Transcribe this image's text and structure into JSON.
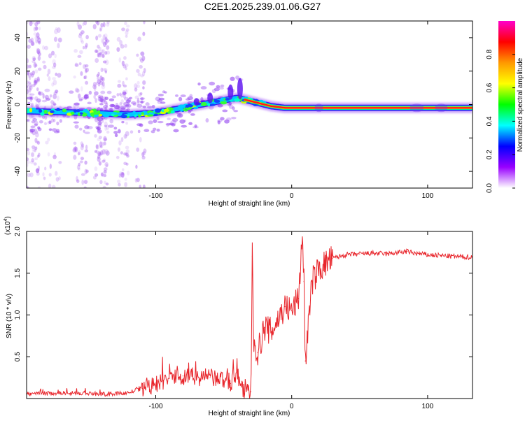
{
  "figure_title": "C2E1.2025.239.01.06.G27",
  "chart_data": [
    {
      "type": "heatmap",
      "title": "C2E1.2025.239.01.06.G27",
      "xlabel": "Height of straight line (km)",
      "ylabel": "Frequency (Hz)",
      "xlim": [
        -195,
        133
      ],
      "ylim": [
        -50,
        50
      ],
      "xticks": [
        {
          "v": -100,
          "t": "-100"
        },
        {
          "v": 0,
          "t": "0"
        },
        {
          "v": 100,
          "t": "100"
        }
      ],
      "yticks": [
        {
          "v": -40,
          "t": "-40"
        },
        {
          "v": -20,
          "t": "-20"
        },
        {
          "v": 0,
          "t": "0"
        },
        {
          "v": 20,
          "t": "20"
        },
        {
          "v": 40,
          "t": "40"
        }
      ],
      "ridge": {
        "x": [
          -195,
          -150,
          -120,
          -100,
          -80,
          -60,
          -40,
          -35,
          -25,
          -15,
          -5,
          0,
          20,
          60,
          85,
          90,
          100,
          108,
          115,
          133
        ],
        "y": [
          -4,
          -5,
          -6,
          -5,
          -2,
          1,
          4,
          3,
          1,
          -1,
          -2,
          -2,
          -2,
          -2,
          -2,
          -2,
          -2,
          -2,
          -2,
          -2
        ]
      },
      "colorbar": {
        "label": "Normalized spectral amplitude",
        "range": [
          0,
          1
        ],
        "ticks": [
          {
            "v": 0.0,
            "t": "0.0"
          },
          {
            "v": 0.2,
            "t": "0.2"
          },
          {
            "v": 0.4,
            "t": "0.4"
          },
          {
            "v": 0.6,
            "t": "0.6"
          },
          {
            "v": 0.8,
            "t": "0.8"
          }
        ],
        "colors": [
          "#ffffff",
          "#9900ff",
          "#0000ff",
          "#00ffff",
          "#00ff00",
          "#ffff00",
          "#ff9900",
          "#ff0000",
          "#ff00cc"
        ]
      }
    },
    {
      "type": "line",
      "title": "",
      "xlabel": "Height of straight line (km)",
      "ylabel": "SNR (10 * v/v)",
      "scale_note": "(x10",
      "scale_exp": "4",
      "scale_close": ")",
      "xlim": [
        -195,
        133
      ],
      "ylim": [
        0,
        2.0
      ],
      "xticks": [
        {
          "v": -100,
          "t": "-100"
        },
        {
          "v": 0,
          "t": "0"
        },
        {
          "v": 100,
          "t": "100"
        }
      ],
      "yticks": [
        {
          "v": 0.5,
          "t": "0.5"
        },
        {
          "v": 1.0,
          "t": "1.0"
        },
        {
          "v": 1.5,
          "t": "1.5"
        },
        {
          "v": 2.0,
          "t": "2.0"
        }
      ],
      "color": "#e8242a",
      "series": [
        {
          "name": "SNR",
          "x": [
            -195,
            -180,
            -165,
            -150,
            -135,
            -120,
            -110,
            -100,
            -90,
            -80,
            -70,
            -60,
            -50,
            -45,
            -40,
            -35,
            -30,
            -29,
            -28,
            -25,
            -20,
            -15,
            -10,
            -5,
            0,
            5,
            8,
            9,
            10,
            15,
            20,
            30,
            40,
            50,
            60,
            70,
            80,
            85,
            90,
            100,
            110,
            120,
            133
          ],
          "y": [
            0.05,
            0.06,
            0.07,
            0.06,
            0.05,
            0.07,
            0.12,
            0.16,
            0.24,
            0.27,
            0.26,
            0.25,
            0.22,
            0.18,
            0.3,
            0.06,
            0.08,
            1.7,
            0.7,
            0.55,
            0.85,
            0.8,
            0.95,
            1.1,
            1.05,
            1.2,
            2.0,
            1.4,
            0.45,
            1.4,
            1.55,
            1.68,
            1.72,
            1.73,
            1.74,
            1.73,
            1.75,
            1.76,
            1.74,
            1.72,
            1.71,
            1.7,
            1.69
          ]
        }
      ]
    }
  ]
}
